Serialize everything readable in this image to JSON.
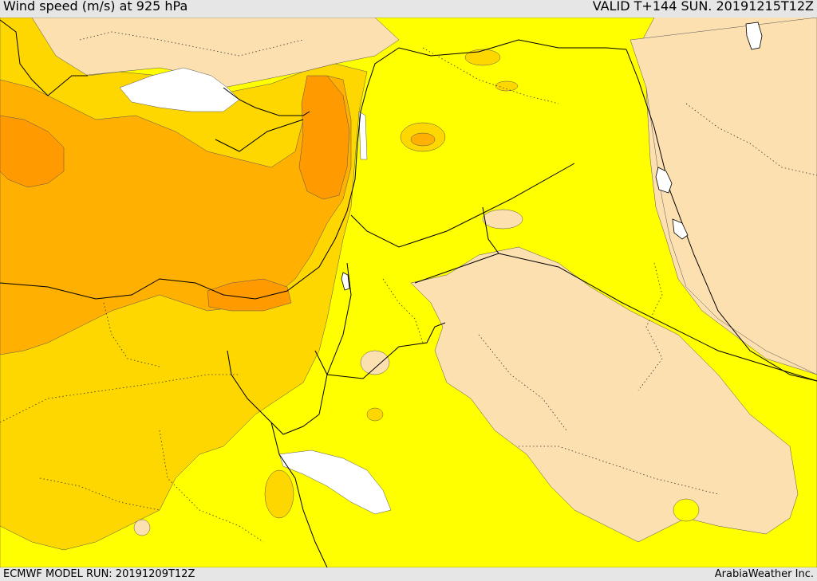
{
  "header": {
    "title": "Wind speed (m/s) at 925 hPa",
    "valid": "VALID T+144 SUN. 20191215T12Z"
  },
  "footer": {
    "model_run": "ECMWF MODEL RUN: 20191209T12Z",
    "credit": "ArabiaWeather Inc."
  },
  "colors": {
    "none": "#ffffff",
    "wheat": "#fde0b0",
    "yellow": "#ffff00",
    "gold": "#ffd700",
    "orange": "#ffb000",
    "dark_orange": "#ff9a00",
    "border": "#000000"
  }
}
